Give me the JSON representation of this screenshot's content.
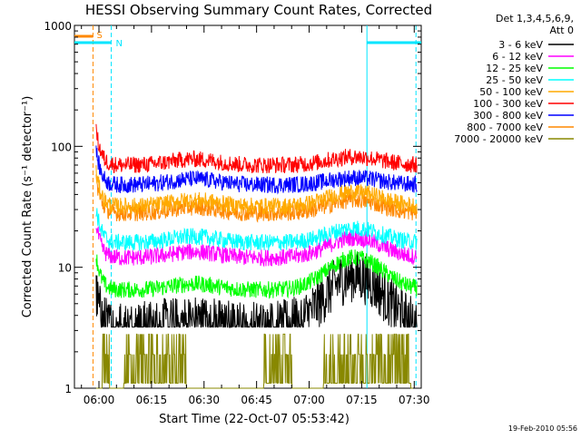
{
  "chart_data": {
    "type": "line",
    "title": "HESSI Observing Summary Count Rates, Corrected",
    "xlabel": "Start Time (22-Oct-07 05:53:42)",
    "ylabel": "Corrected Count Rate (s⁻¹ detector⁻¹)",
    "y_scale": "log",
    "ylim": [
      1,
      1000
    ],
    "xlim_minutes_after_0553": [
      0,
      99
    ],
    "x_ticks": [
      "06:00",
      "06:15",
      "06:30",
      "06:45",
      "07:00",
      "07:15",
      "07:30"
    ],
    "y_ticks": [
      "1",
      "10",
      "100",
      "1000"
    ],
    "legend": {
      "placement": "right",
      "header": [
        "Det 1,3,4,5,6,9,",
        "Att 0"
      ]
    },
    "series": [
      {
        "name": "3 - 6 keV",
        "color": "#000000",
        "level": 3.2,
        "peak": 8.5
      },
      {
        "name": "6 - 12 keV",
        "color": "#ff00ff",
        "level": 12.0,
        "peak": 17.5
      },
      {
        "name": "12 - 25 keV",
        "color": "#00ff00",
        "level": 6.5,
        "peak": 12.0
      },
      {
        "name": "25 - 50 keV",
        "color": "#00ffff",
        "level": 16.0,
        "peak": 21.0
      },
      {
        "name": "50 - 100 keV",
        "color": "#ffaa00",
        "level": 32.0,
        "peak": 42.0
      },
      {
        "name": "100 - 300 keV",
        "color": "#ff0000",
        "level": 70.0,
        "peak": 82.0
      },
      {
        "name": "300 - 800 keV",
        "color": "#0000ff",
        "level": 48.0,
        "peak": 55.0
      },
      {
        "name": "800 - 7000 keV",
        "color": "#ff8800",
        "level": 28.0,
        "peak": 36.0
      },
      {
        "name": "7000 - 20000 keV",
        "color": "#888800",
        "level": 1.5,
        "peak": 2.5
      }
    ],
    "flags": [
      {
        "label": "S",
        "color": "#ff8800"
      },
      {
        "label": "N",
        "color": "#00e5ff"
      }
    ]
  },
  "footer": {
    "timestamp": "19-Feb-2010 05:56"
  }
}
